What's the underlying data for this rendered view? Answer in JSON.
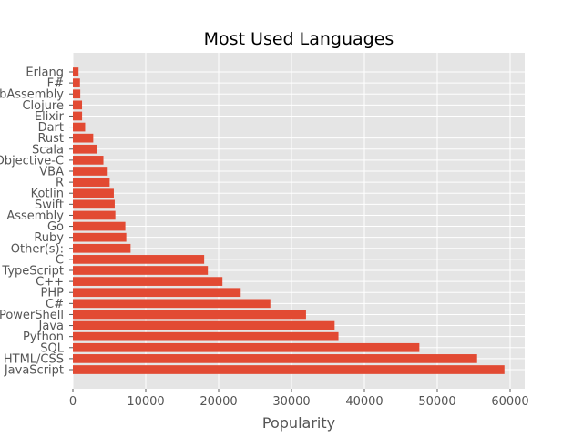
{
  "chart_data": {
    "type": "bar",
    "orientation": "horizontal",
    "title": "Most Used Languages",
    "xlabel": "Popularity",
    "ylabel": "",
    "xlim": [
      0,
      62000
    ],
    "xticks": [
      0,
      10000,
      20000,
      30000,
      40000,
      50000,
      60000
    ],
    "grid": true,
    "bar_color": "#E24A33",
    "background_color": "#E5E5E5",
    "categories": [
      "JavaScript",
      "HTML/CSS",
      "SQL",
      "Python",
      "Java",
      "PowerShell",
      "C#",
      "PHP",
      "C++",
      "TypeScript",
      "C",
      "Other(s):",
      "Ruby",
      "Go",
      "Assembly",
      "Swift",
      "Kotlin",
      "R",
      "VBA",
      "Objective-C",
      "Scala",
      "Rust",
      "Dart",
      "Elixir",
      "Clojure",
      "WebAssembly",
      "F#",
      "Erlang"
    ],
    "values": [
      59219,
      55466,
      47544,
      36443,
      35917,
      31991,
      27097,
      23030,
      20524,
      18523,
      18017,
      7920,
      7331,
      7201,
      5833,
      5744,
      5620,
      5048,
      4781,
      4191,
      3309,
      2794,
      1683,
      1260,
      1254,
      1015,
      973,
      777
    ]
  }
}
